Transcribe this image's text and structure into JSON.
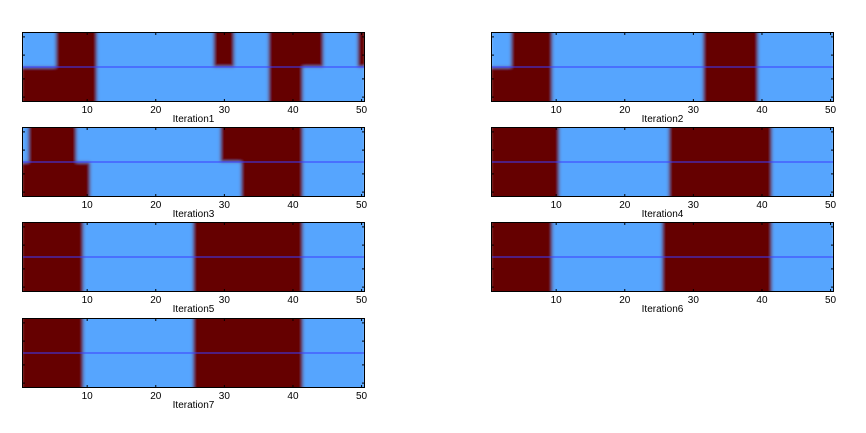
{
  "figure": {
    "background": "#ffffff",
    "colors": {
      "high": "#650505",
      "low": "#56a5fe",
      "midline": "#3c3cff",
      "axis": "#000000"
    }
  },
  "chart_data": [
    {
      "type": "heatmap",
      "title": "",
      "xlabel": "Iteration1",
      "ylabel": "",
      "xlim": [
        0.5,
        50.5
      ],
      "xticks": [
        10,
        20,
        30,
        40,
        50
      ],
      "midline": true,
      "segments": [
        {
          "x0": 0.5,
          "x1": 5.5,
          "top": "low",
          "bottom": "high"
        },
        {
          "x0": 5.5,
          "x1": 11.5,
          "top": "high",
          "bottom": "high"
        },
        {
          "x0": 11.5,
          "x1": 28.5,
          "top": "low",
          "bottom": "low"
        },
        {
          "x0": 28.5,
          "x1": 31.5,
          "top": "high",
          "bottom": "low"
        },
        {
          "x0": 31.5,
          "x1": 36.5,
          "top": "low",
          "bottom": "low"
        },
        {
          "x0": 36.5,
          "x1": 39.5,
          "top": "high",
          "bottom": "high"
        },
        {
          "x0": 39.5,
          "x1": 41.5,
          "top": "high",
          "bottom": "high"
        },
        {
          "x0": 41.5,
          "x1": 44.5,
          "top": "high",
          "bottom": "low"
        },
        {
          "x0": 44.5,
          "x1": 49.5,
          "top": "low",
          "bottom": "low"
        },
        {
          "x0": 49.5,
          "x1": 50.5,
          "top": "high",
          "bottom": "low"
        }
      ]
    },
    {
      "type": "heatmap",
      "title": "",
      "xlabel": "Iteration2",
      "ylabel": "",
      "xlim": [
        0.5,
        50.5
      ],
      "xticks": [
        10,
        20,
        30,
        40,
        50
      ],
      "midline": true,
      "segments": [
        {
          "x0": 0.5,
          "x1": 3.5,
          "top": "low",
          "bottom": "high"
        },
        {
          "x0": 3.5,
          "x1": 9.5,
          "top": "high",
          "bottom": "high"
        },
        {
          "x0": 9.5,
          "x1": 31.5,
          "top": "low",
          "bottom": "low"
        },
        {
          "x0": 31.5,
          "x1": 39.5,
          "top": "high",
          "bottom": "high"
        },
        {
          "x0": 39.5,
          "x1": 50.5,
          "top": "low",
          "bottom": "low"
        }
      ]
    },
    {
      "type": "heatmap",
      "title": "",
      "xlabel": "Iteration3",
      "ylabel": "",
      "xlim": [
        0.5,
        50.5
      ],
      "xticks": [
        10,
        20,
        30,
        40,
        50
      ],
      "midline": true,
      "segments": [
        {
          "x0": 0.5,
          "x1": 1.5,
          "top": "low",
          "bottom": "high"
        },
        {
          "x0": 1.5,
          "x1": 8.5,
          "top": "high",
          "bottom": "high"
        },
        {
          "x0": 8.5,
          "x1": 10.5,
          "top": "low",
          "bottom": "high"
        },
        {
          "x0": 10.5,
          "x1": 29.5,
          "top": "low",
          "bottom": "low"
        },
        {
          "x0": 29.5,
          "x1": 32.5,
          "top": "high",
          "bottom": "low"
        },
        {
          "x0": 32.5,
          "x1": 41.5,
          "top": "high",
          "bottom": "high"
        },
        {
          "x0": 41.5,
          "x1": 50.5,
          "top": "low",
          "bottom": "low"
        }
      ]
    },
    {
      "type": "heatmap",
      "title": "",
      "xlabel": "Iteration4",
      "ylabel": "",
      "xlim": [
        0.5,
        50.5
      ],
      "xticks": [
        10,
        20,
        30,
        40,
        50
      ],
      "midline": true,
      "segments": [
        {
          "x0": 0.5,
          "x1": 10.5,
          "top": "high",
          "bottom": "high"
        },
        {
          "x0": 10.5,
          "x1": 26.5,
          "top": "low",
          "bottom": "low"
        },
        {
          "x0": 26.5,
          "x1": 41.5,
          "top": "high",
          "bottom": "high"
        },
        {
          "x0": 41.5,
          "x1": 50.5,
          "top": "low",
          "bottom": "low"
        }
      ]
    },
    {
      "type": "heatmap",
      "title": "",
      "xlabel": "Iteration5",
      "ylabel": "",
      "xlim": [
        0.5,
        50.5
      ],
      "xticks": [
        10,
        20,
        30,
        40,
        50
      ],
      "midline": true,
      "segments": [
        {
          "x0": 0.5,
          "x1": 9.5,
          "top": "high",
          "bottom": "high"
        },
        {
          "x0": 9.5,
          "x1": 25.5,
          "top": "low",
          "bottom": "low"
        },
        {
          "x0": 25.5,
          "x1": 41.5,
          "top": "high",
          "bottom": "high"
        },
        {
          "x0": 41.5,
          "x1": 50.5,
          "top": "low",
          "bottom": "low"
        }
      ]
    },
    {
      "type": "heatmap",
      "title": "",
      "xlabel": "Iteration6",
      "ylabel": "",
      "xlim": [
        0.5,
        50.5
      ],
      "xticks": [
        10,
        20,
        30,
        40,
        50
      ],
      "midline": true,
      "segments": [
        {
          "x0": 0.5,
          "x1": 9.5,
          "top": "high",
          "bottom": "high"
        },
        {
          "x0": 9.5,
          "x1": 25.5,
          "top": "low",
          "bottom": "low"
        },
        {
          "x0": 25.5,
          "x1": 41.5,
          "top": "high",
          "bottom": "high"
        },
        {
          "x0": 41.5,
          "x1": 50.5,
          "top": "low",
          "bottom": "low"
        }
      ]
    },
    {
      "type": "heatmap",
      "title": "",
      "xlabel": "Iteration7",
      "ylabel": "",
      "xlim": [
        0.5,
        50.5
      ],
      "xticks": [
        10,
        20,
        30,
        40,
        50
      ],
      "midline": true,
      "segments": [
        {
          "x0": 0.5,
          "x1": 9.5,
          "top": "high",
          "bottom": "high"
        },
        {
          "x0": 9.5,
          "x1": 25.5,
          "top": "low",
          "bottom": "low"
        },
        {
          "x0": 25.5,
          "x1": 41.5,
          "top": "high",
          "bottom": "high"
        },
        {
          "x0": 41.5,
          "x1": 50.5,
          "top": "low",
          "bottom": "low"
        }
      ]
    }
  ]
}
